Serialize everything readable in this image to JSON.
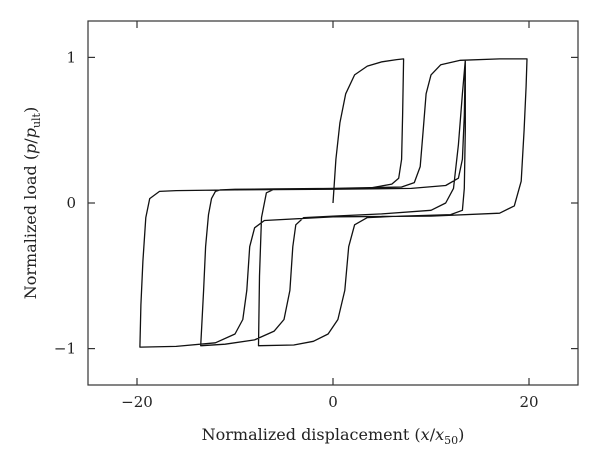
{
  "chart_data": {
    "type": "line",
    "title": "",
    "xlabel": {
      "prefix": "Normalized displacement (",
      "var": "x",
      "sep": "/",
      "var2": "x",
      "sub": "50",
      "suffix": ")"
    },
    "ylabel": {
      "prefix": "Normalized load (",
      "var": "p",
      "sep": "/",
      "var2": "p",
      "sub": "ult",
      "suffix": ")"
    },
    "xlim": [
      -25,
      25
    ],
    "ylim": [
      -1.25,
      1.25
    ],
    "xticks": [
      -20,
      0,
      20
    ],
    "xtick_labels": [
      "−20",
      "0",
      "20"
    ],
    "yticks": [
      -1,
      0,
      1
    ],
    "ytick_labels": [
      "−1",
      "0",
      "1"
    ],
    "grid": false,
    "legend": "none",
    "curve_color": "#111111",
    "series": [
      {
        "values": [
          [
            0,
            0
          ],
          [
            0.3,
            0.3
          ],
          [
            0.7,
            0.55
          ],
          [
            1.3,
            0.75
          ],
          [
            2.2,
            0.88
          ],
          [
            3.5,
            0.94
          ],
          [
            5,
            0.97
          ],
          [
            6.5,
            0.985
          ],
          [
            7.2,
            0.99
          ],
          [
            7.1,
            0.6
          ],
          [
            7.0,
            0.3
          ],
          [
            6.7,
            0.17
          ],
          [
            6,
            0.13
          ],
          [
            4,
            0.105
          ],
          [
            0,
            0.1
          ],
          [
            -6,
            0.097
          ],
          [
            -10,
            0.094
          ],
          [
            -11.5,
            0.09
          ],
          [
            -12,
            0.08
          ],
          [
            -12.4,
            0.03
          ],
          [
            -12.7,
            -0.08
          ],
          [
            -13,
            -0.3
          ],
          [
            -13.2,
            -0.6
          ],
          [
            -13.4,
            -0.85
          ],
          [
            -13.5,
            -0.98
          ],
          [
            -13.4,
            -0.98
          ],
          [
            -11,
            -0.97
          ],
          [
            -8,
            -0.94
          ],
          [
            -6,
            -0.88
          ],
          [
            -5,
            -0.8
          ],
          [
            -4.4,
            -0.6
          ],
          [
            -4.1,
            -0.3
          ],
          [
            -3.8,
            -0.15
          ],
          [
            -3,
            -0.1
          ],
          [
            0,
            -0.09
          ],
          [
            5,
            -0.075
          ],
          [
            10,
            -0.05
          ],
          [
            11.5,
            0.0
          ],
          [
            12.3,
            0.1
          ],
          [
            12.8,
            0.4
          ],
          [
            13.2,
            0.75
          ],
          [
            13.5,
            0.98
          ],
          [
            13.4,
            0.6
          ],
          [
            13.2,
            0.3
          ],
          [
            12.8,
            0.17
          ],
          [
            11.5,
            0.12
          ],
          [
            8,
            0.1
          ],
          [
            0,
            0.095
          ],
          [
            -10,
            0.09
          ],
          [
            -16,
            0.085
          ],
          [
            -17.7,
            0.08
          ],
          [
            -18.7,
            0.03
          ],
          [
            -19.1,
            -0.1
          ],
          [
            -19.4,
            -0.4
          ],
          [
            -19.6,
            -0.7
          ],
          [
            -19.7,
            -0.99
          ],
          [
            -19.6,
            -0.99
          ],
          [
            -16,
            -0.985
          ],
          [
            -12,
            -0.96
          ],
          [
            -10,
            -0.9
          ],
          [
            -9.2,
            -0.8
          ],
          [
            -8.8,
            -0.6
          ],
          [
            -8.5,
            -0.3
          ],
          [
            -8,
            -0.17
          ],
          [
            -7,
            -0.12
          ],
          [
            0,
            -0.095
          ],
          [
            10,
            -0.09
          ],
          [
            17,
            -0.07
          ],
          [
            18.5,
            -0.02
          ],
          [
            19.2,
            0.15
          ],
          [
            19.5,
            0.5
          ],
          [
            19.7,
            0.8
          ],
          [
            19.8,
            0.99
          ],
          [
            17,
            0.99
          ],
          [
            13,
            0.98
          ],
          [
            11,
            0.95
          ],
          [
            10,
            0.88
          ],
          [
            9.5,
            0.75
          ],
          [
            9.2,
            0.5
          ],
          [
            8.9,
            0.25
          ],
          [
            8.3,
            0.14
          ],
          [
            7,
            0.11
          ],
          [
            0,
            0.1
          ],
          [
            -6,
            0.095
          ],
          [
            -6.8,
            0.07
          ],
          [
            -7.3,
            -0.1
          ],
          [
            -7.5,
            -0.5
          ],
          [
            -7.6,
            -0.98
          ],
          [
            -7.5,
            -0.98
          ],
          [
            -4,
            -0.975
          ],
          [
            -2,
            -0.95
          ],
          [
            -0.5,
            -0.9
          ],
          [
            0.5,
            -0.8
          ],
          [
            1.2,
            -0.6
          ],
          [
            1.6,
            -0.3
          ],
          [
            2.2,
            -0.15
          ],
          [
            3.5,
            -0.1
          ],
          [
            7,
            -0.09
          ],
          [
            12,
            -0.08
          ],
          [
            13.2,
            -0.05
          ],
          [
            13.4,
            0.1
          ],
          [
            13.5,
            0.5
          ],
          [
            13.5,
            0.98
          ]
        ]
      }
    ]
  }
}
